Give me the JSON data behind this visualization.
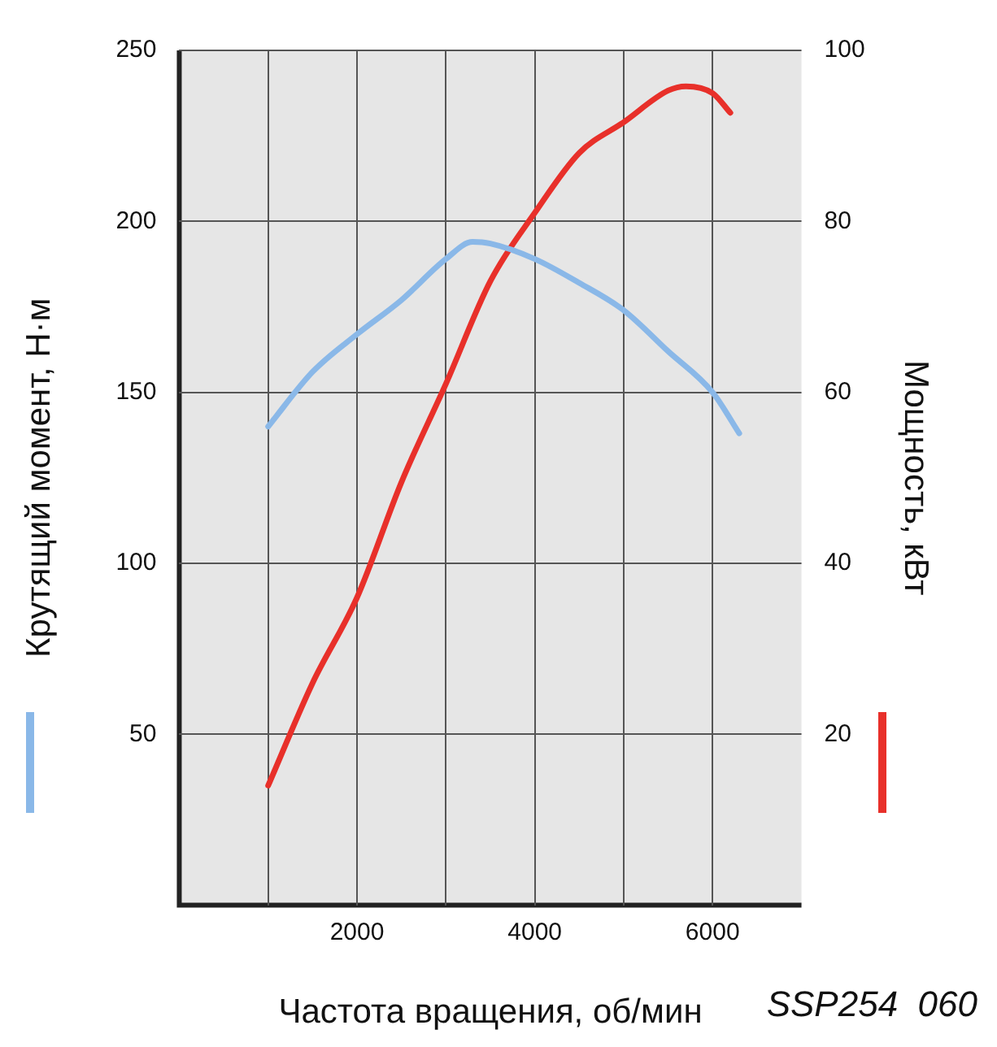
{
  "chart_data": {
    "type": "line",
    "xlabel": "Частота вращения, об/мин",
    "ylabel": "Крутящий момент, Н·м",
    "y2label": "Мощность, кВт",
    "annotations": [
      "SSP254  060"
    ],
    "xlim": [
      0,
      7000
    ],
    "xticks": [
      {
        "value": 1000,
        "label": null
      },
      2000,
      {
        "value": 3000,
        "label": null
      },
      4000,
      {
        "value": 5000,
        "label": null
      },
      6000
    ],
    "ylim": [
      0,
      250
    ],
    "yticks": [
      50,
      100,
      150,
      200,
      250
    ],
    "y2lim": [
      0,
      100
    ],
    "y2ticks": [
      20,
      40,
      60,
      80,
      100
    ],
    "grid": true,
    "line_style": "solid",
    "marker": "none",
    "series": [
      {
        "color": "#8ab8e8",
        "x": [
          1000,
          1500,
          2000,
          2500,
          3000,
          3300,
          3500,
          4000,
          4500,
          5000,
          5500,
          6000,
          6300
        ],
        "values": [
          140,
          156,
          167,
          177,
          189,
          194,
          193.5,
          189,
          182,
          174,
          162,
          150,
          138
        ]
      },
      {
        "color": "#e8302a",
        "axis": "y2",
        "x": [
          1000,
          1500,
          2000,
          2500,
          3000,
          3500,
          4000,
          4500,
          5000,
          5500,
          5700,
          6000,
          6200
        ],
        "values": [
          14,
          26,
          36,
          49.5,
          61,
          73,
          81,
          88,
          91.6,
          95.3,
          95.8,
          95,
          92.7
        ]
      }
    ]
  }
}
